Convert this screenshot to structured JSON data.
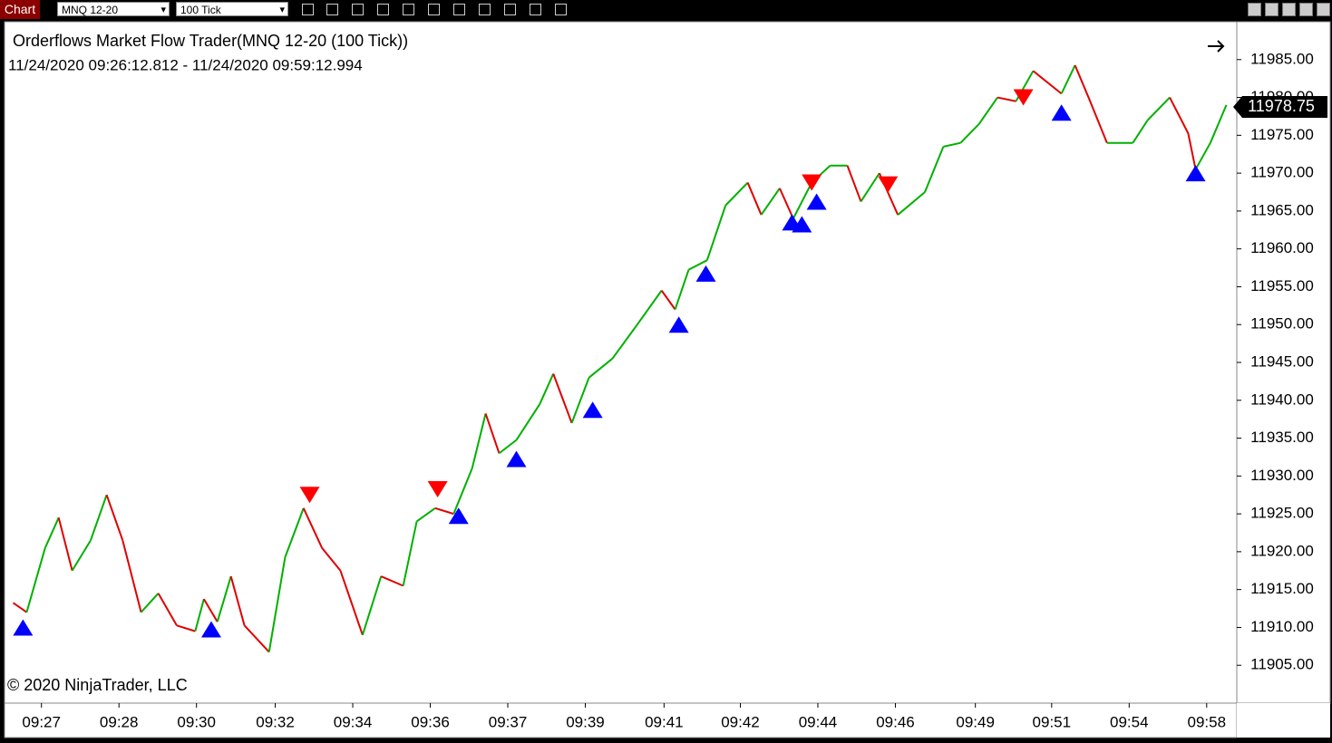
{
  "toolbar": {
    "tab": "Chart",
    "instrument": "MNQ 12-20",
    "interval": "100 Tick"
  },
  "chart_data": {
    "type": "line",
    "title": "Orderflows Market Flow Trader(MNQ 12-20 (100 Tick))",
    "subtitle": "11/24/2020 09:26:12.812 - 11/24/2020 09:59:12.994",
    "annotation": "© 2020 NinjaTrader, LLC",
    "x": [
      0.7,
      1.8,
      3.3,
      4.4,
      5.5,
      7.0,
      8.3,
      9.6,
      11.1,
      12.5,
      14.0,
      15.5,
      16.2,
      17.3,
      18.4,
      19.5,
      21.5,
      22.8,
      24.3,
      25.8,
      27.3,
      29.1,
      30.6,
      32.4,
      33.5,
      35.0,
      36.5,
      38.0,
      39.1,
      40.2,
      41.6,
      43.5,
      44.6,
      46.1,
      47.5,
      49.4,
      51.2,
      53.4,
      54.5,
      55.6,
      57.1,
      58.6,
      60.4,
      61.5,
      63.0,
      64.1,
      65.6,
      67.1,
      68.5,
      69.6,
      71.1,
      72.6,
      74.8,
      76.3,
      77.7,
      79.2,
      80.7,
      82.2,
      83.6,
      85.9,
      87.0,
      88.1,
      89.6,
      91.7,
      92.9,
      94.7,
      96.2,
      96.8,
      98.0,
      99.3
    ],
    "values": [
      11913.25,
      11912,
      11920.5,
      11924.5,
      11917.5,
      11921.5,
      11927.5,
      11921.5,
      11912,
      11914.5,
      11910.25,
      11909.5,
      11913.75,
      11910.75,
      11916.75,
      11910.25,
      11906.75,
      11919.25,
      11925.75,
      11920.5,
      11917.5,
      11909,
      11916.75,
      11915.5,
      11924,
      11925.75,
      11925,
      11931,
      11938.25,
      11933,
      11934.75,
      11939.5,
      11943.5,
      11937,
      11943,
      11945.5,
      11949.5,
      11954.5,
      11952,
      11957.25,
      11958.5,
      11965.75,
      11968.75,
      11964.5,
      11968,
      11964,
      11968.75,
      11971,
      11971,
      11966.25,
      11970,
      11964.5,
      11967.5,
      11973.5,
      11974,
      11976.5,
      11980,
      11979.5,
      11983.5,
      11980.5,
      11984.25,
      11980,
      11974,
      11974,
      11977,
      11980,
      11975.25,
      11970.5,
      11974,
      11979
    ],
    "up_color": "#00b000",
    "down_color": "#e00000",
    "signals": [
      {
        "name": "buy",
        "color": "#0000ff",
        "direction": "up",
        "x": [
          1.5,
          16.8,
          36.9,
          41.6,
          47.8,
          54.8,
          57.0,
          64.0,
          64.8,
          66.0,
          85.9,
          96.8
        ],
        "values": [
          11910,
          11909.75,
          11924.75,
          11932.25,
          11938.75,
          11950,
          11956.75,
          11963.5,
          11963.25,
          11966.25,
          11978,
          11970
        ]
      },
      {
        "name": "sell",
        "color": "#ff0000",
        "direction": "down",
        "x": [
          24.8,
          35.2,
          65.6,
          71.8,
          82.8
        ],
        "values": [
          11927.5,
          11928.25,
          11968.75,
          11968.5,
          11980
        ]
      }
    ],
    "last_price": {
      "value": 11978.75,
      "label": "11978.75"
    },
    "xlim": [
      0,
      100
    ],
    "xticks": [
      {
        "value": 3.0,
        "label": "09:27"
      },
      {
        "value": 9.3,
        "label": "09:28"
      },
      {
        "value": 15.6,
        "label": "09:30"
      },
      {
        "value": 22.0,
        "label": "09:32"
      },
      {
        "value": 28.3,
        "label": "09:34"
      },
      {
        "value": 34.6,
        "label": "09:36"
      },
      {
        "value": 40.9,
        "label": "09:37"
      },
      {
        "value": 47.2,
        "label": "09:39"
      },
      {
        "value": 53.6,
        "label": "09:41"
      },
      {
        "value": 59.8,
        "label": "09:42"
      },
      {
        "value": 66.1,
        "label": "09:44"
      },
      {
        "value": 72.4,
        "label": "09:46"
      },
      {
        "value": 78.9,
        "label": "09:49"
      },
      {
        "value": 85.1,
        "label": "09:51"
      },
      {
        "value": 91.4,
        "label": "09:54"
      },
      {
        "value": 97.7,
        "label": "09:58"
      }
    ],
    "ylim": [
      11900,
      11990
    ],
    "yticks": [
      {
        "value": 11905,
        "label": "11905.00"
      },
      {
        "value": 11910,
        "label": "11910.00"
      },
      {
        "value": 11915,
        "label": "11915.00"
      },
      {
        "value": 11920,
        "label": "11920.00"
      },
      {
        "value": 11925,
        "label": "11925.00"
      },
      {
        "value": 11930,
        "label": "11930.00"
      },
      {
        "value": 11935,
        "label": "11935.00"
      },
      {
        "value": 11940,
        "label": "11940.00"
      },
      {
        "value": 11945,
        "label": "11945.00"
      },
      {
        "value": 11950,
        "label": "11950.00"
      },
      {
        "value": 11955,
        "label": "11955.00"
      },
      {
        "value": 11960,
        "label": "11960.00"
      },
      {
        "value": 11965,
        "label": "11965.00"
      },
      {
        "value": 11970,
        "label": "11970.00"
      },
      {
        "value": 11975,
        "label": "11975.00"
      },
      {
        "value": 11980,
        "label": "11980.00"
      },
      {
        "value": 11985,
        "label": "11985.00"
      }
    ]
  }
}
